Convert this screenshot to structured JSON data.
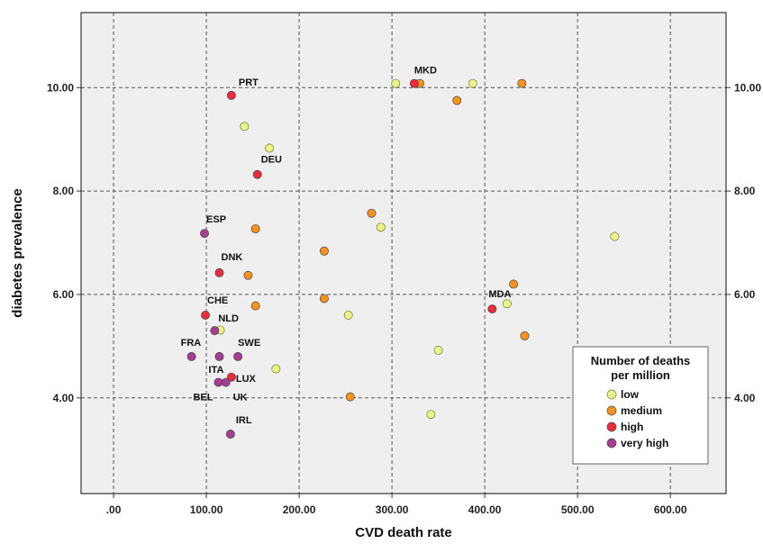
{
  "chart_data": {
    "type": "scatter",
    "xlabel": "CVD death rate",
    "ylabel": "diabetes prevalence",
    "xlim": [
      -35,
      660
    ],
    "ylim": [
      2.15,
      11.45
    ],
    "x_ticks": [
      0,
      100,
      200,
      300,
      400,
      500,
      600
    ],
    "x_tick_labels": [
      ".00",
      "100.00",
      "200.00",
      "300.00",
      "400.00",
      "500.00",
      "600.00"
    ],
    "y_ticks": [
      4,
      6,
      8,
      10
    ],
    "y_tick_labels": [
      "4.00",
      "6.00",
      "8.00",
      "10.00"
    ],
    "right_y_tick_labels": [
      "4.00",
      "6.00",
      "8.00",
      "10.00"
    ],
    "grid": true,
    "background": "#efefef",
    "legend": {
      "title_lines": [
        "Number of deaths",
        "per million"
      ],
      "position": "bottom-right",
      "entries": [
        {
          "key": "low",
          "label": "low",
          "color": "#e9f58c"
        },
        {
          "key": "medium",
          "label": "medium",
          "color": "#fb921e"
        },
        {
          "key": "high",
          "label": "high",
          "color": "#ee2a3c"
        },
        {
          "key": "very_high",
          "label": "very high",
          "color": "#a63d93"
        }
      ]
    },
    "points": [
      {
        "x": 127,
        "y": 9.85,
        "group": "high",
        "label": "PRT"
      },
      {
        "x": 155,
        "y": 8.32,
        "group": "high",
        "label": "DEU"
      },
      {
        "x": 98,
        "y": 7.18,
        "group": "very_high",
        "label": "ESP"
      },
      {
        "x": 114,
        "y": 6.42,
        "group": "high",
        "label": "DNK"
      },
      {
        "x": 99,
        "y": 5.6,
        "group": "high",
        "label": "CHE"
      },
      {
        "x": 109,
        "y": 5.3,
        "group": "very_high",
        "label": "NLD"
      },
      {
        "x": 84,
        "y": 4.8,
        "group": "very_high",
        "label": "FRA"
      },
      {
        "x": 134,
        "y": 4.8,
        "group": "very_high",
        "label": "SWE"
      },
      {
        "x": 113,
        "y": 4.3,
        "group": "very_high",
        "label": "BEL"
      },
      {
        "x": 121,
        "y": 4.3,
        "group": "very_high",
        "label": "UK"
      },
      {
        "x": 127,
        "y": 4.4,
        "group": "high",
        "label": "LUX"
      },
      {
        "x": 126,
        "y": 3.3,
        "group": "very_high",
        "label": "IRL"
      },
      {
        "x": 324,
        "y": 10.08,
        "group": "high",
        "label": "MKD"
      },
      {
        "x": 408,
        "y": 5.72,
        "group": "high",
        "label": "MDA"
      },
      {
        "x": 114,
        "y": 4.8,
        "group": "very_high",
        "label": "ITA"
      },
      {
        "x": 115,
        "y": 5.31,
        "group": "low",
        "label": ""
      },
      {
        "x": 141,
        "y": 9.25,
        "group": "low",
        "label": ""
      },
      {
        "x": 168,
        "y": 8.83,
        "group": "low",
        "label": ""
      },
      {
        "x": 175,
        "y": 4.56,
        "group": "low",
        "label": ""
      },
      {
        "x": 253,
        "y": 5.6,
        "group": "low",
        "label": ""
      },
      {
        "x": 288,
        "y": 7.3,
        "group": "low",
        "label": ""
      },
      {
        "x": 304,
        "y": 10.08,
        "group": "low",
        "label": ""
      },
      {
        "x": 342,
        "y": 3.68,
        "group": "low",
        "label": ""
      },
      {
        "x": 350,
        "y": 4.92,
        "group": "low",
        "label": ""
      },
      {
        "x": 387,
        "y": 10.08,
        "group": "low",
        "label": ""
      },
      {
        "x": 424,
        "y": 5.82,
        "group": "low",
        "label": ""
      },
      {
        "x": 540,
        "y": 7.12,
        "group": "low",
        "label": ""
      },
      {
        "x": 145,
        "y": 6.37,
        "group": "medium",
        "label": ""
      },
      {
        "x": 153,
        "y": 7.27,
        "group": "medium",
        "label": ""
      },
      {
        "x": 153,
        "y": 5.78,
        "group": "medium",
        "label": ""
      },
      {
        "x": 227,
        "y": 6.84,
        "group": "medium",
        "label": ""
      },
      {
        "x": 227,
        "y": 5.92,
        "group": "medium",
        "label": ""
      },
      {
        "x": 255,
        "y": 4.02,
        "group": "medium",
        "label": ""
      },
      {
        "x": 278,
        "y": 7.57,
        "group": "medium",
        "label": ""
      },
      {
        "x": 330,
        "y": 10.08,
        "group": "medium",
        "label": ""
      },
      {
        "x": 370,
        "y": 9.75,
        "group": "medium",
        "label": ""
      },
      {
        "x": 431,
        "y": 6.2,
        "group": "medium",
        "label": ""
      },
      {
        "x": 440,
        "y": 10.08,
        "group": "medium",
        "label": ""
      },
      {
        "x": 443,
        "y": 5.2,
        "group": "medium",
        "label": ""
      }
    ]
  }
}
